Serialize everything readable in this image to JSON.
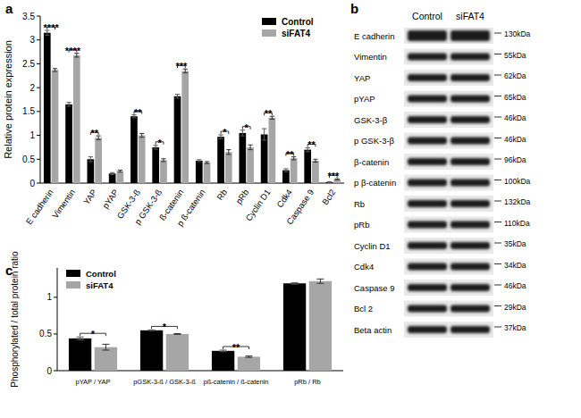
{
  "panel_labels": [
    "a",
    "b",
    "c"
  ],
  "chart_data": [
    {
      "type": "bar",
      "y_label": "Relative protein expression",
      "categories": [
        "E cadherin",
        "Vimentin",
        "YAP",
        "pYAP",
        "GSK-3-ß",
        "p GSK-3-ß",
        "ß-catenin",
        "p ß-catenin",
        "Rb",
        "pRb",
        "Cyclin D1",
        "Cdk4",
        "Caspase 9",
        "Bcl2"
      ],
      "series": [
        {
          "name": "Control",
          "color": "#000000",
          "values": [
            3.15,
            1.65,
            0.5,
            0.2,
            1.4,
            0.75,
            1.82,
            0.47,
            0.97,
            1.05,
            1.02,
            0.27,
            0.7,
            0.02
          ],
          "errors": [
            0.05,
            0.04,
            0.05,
            0.02,
            0.03,
            0.04,
            0.04,
            0.02,
            0.04,
            0.06,
            0.12,
            0.03,
            0.04,
            0.01
          ]
        },
        {
          "name": "siFAT4",
          "color": "#a6a6a6",
          "values": [
            2.37,
            2.68,
            0.95,
            0.25,
            1.0,
            0.48,
            2.35,
            0.43,
            0.65,
            0.75,
            1.37,
            0.52,
            0.47,
            0.08
          ],
          "errors": [
            0.03,
            0.04,
            0.04,
            0.02,
            0.04,
            0.03,
            0.04,
            0.02,
            0.05,
            0.05,
            0.03,
            0.03,
            0.03,
            0.01
          ]
        }
      ],
      "annotations": [
        "****",
        "****",
        "**",
        null,
        "**",
        "*",
        "***",
        null,
        "*",
        "*",
        "**",
        "**",
        "**",
        "***"
      ],
      "ylim": [
        0,
        3.5
      ],
      "yticks": [
        0,
        0.5,
        1,
        1.5,
        2,
        2.5,
        3,
        3.5
      ],
      "legend": "top-right",
      "grid": false
    },
    {
      "type": "bar",
      "y_label": "Phosphorylated / total protein ratio",
      "categories": [
        "pYAP / YAP",
        "pGSK-3-ß / GSK-3-ß",
        "pß-catenin / ß-catenin",
        "pRb / Rb"
      ],
      "series": [
        {
          "name": "Control",
          "color": "#000000",
          "values": [
            0.44,
            0.55,
            0.27,
            1.19
          ],
          "errors": [
            0.02,
            0.005,
            0.01,
            0.01
          ]
        },
        {
          "name": "siFAT4",
          "color": "#a6a6a6",
          "values": [
            0.32,
            0.5,
            0.19,
            1.22
          ],
          "errors": [
            0.04,
            0.005,
            0.01,
            0.03
          ]
        }
      ],
      "annotations": [
        "*",
        "*",
        "**",
        null
      ],
      "ylim": [
        0,
        1.4
      ],
      "yticks": [
        0,
        0.5,
        1
      ],
      "legend": "top-left",
      "grid": false
    }
  ],
  "blot": {
    "lanes": [
      "Control",
      "siFAT4"
    ],
    "rows": [
      {
        "label": "E cadherin",
        "size": "130kDa"
      },
      {
        "label": "Vimentin",
        "size": "55kDa"
      },
      {
        "label": "YAP",
        "size": "62kDa"
      },
      {
        "label": "pYAP",
        "size": "65kDa"
      },
      {
        "label": "GSK-3-β",
        "size": "46kDa"
      },
      {
        "label": "p GSK-3-β",
        "size": "46kDa"
      },
      {
        "label": "β-catenin",
        "size": "96kDa"
      },
      {
        "label": "p β-catenin",
        "size": "100kDa"
      },
      {
        "label": "Rb",
        "size": "132kDa"
      },
      {
        "label": "pRb",
        "size": "110kDa"
      },
      {
        "label": "Cyclin D1",
        "size": "35kDa"
      },
      {
        "label": "Cdk4",
        "size": "34kDa"
      },
      {
        "label": "Caspase 9",
        "size": "46kDa"
      },
      {
        "label": "Bcl 2",
        "size": "29kDa"
      },
      {
        "label": "Beta actin",
        "size": "37kDa"
      }
    ]
  }
}
